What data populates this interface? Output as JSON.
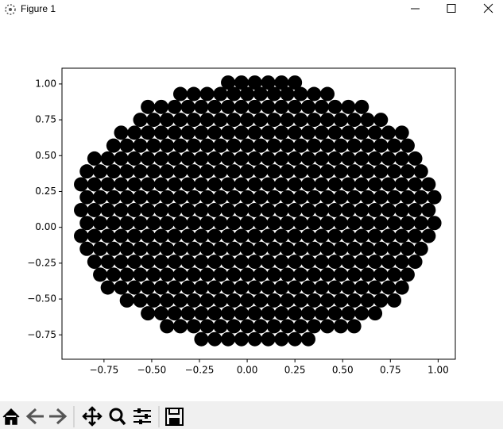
{
  "window": {
    "title": "Figure 1"
  },
  "chart_data": {
    "type": "scatter",
    "color": "#000000",
    "xlim": [
      -0.97,
      1.09
    ],
    "ylim": [
      -0.92,
      1.11
    ],
    "xticks": [
      {
        "value": -0.75,
        "label": "−0.75"
      },
      {
        "value": -0.5,
        "label": "−0.50"
      },
      {
        "value": -0.25,
        "label": "−0.25"
      },
      {
        "value": 0,
        "label": "0.00"
      },
      {
        "value": 0.25,
        "label": "0.25"
      },
      {
        "value": 0.5,
        "label": "0.50"
      },
      {
        "value": 0.75,
        "label": "0.75"
      },
      {
        "value": 1,
        "label": "1.00"
      }
    ],
    "yticks": [
      {
        "value": -0.75,
        "label": "−0.75"
      },
      {
        "value": -0.5,
        "label": "−0.50"
      },
      {
        "value": -0.25,
        "label": "−0.25"
      },
      {
        "value": 0,
        "label": "0.00"
      },
      {
        "value": 0.25,
        "label": "0.25"
      },
      {
        "value": 0.5,
        "label": "0.50"
      },
      {
        "value": 0.75,
        "label": "0.75"
      },
      {
        "value": 1,
        "label": "1.00"
      }
    ],
    "x": [
      -0.24,
      -0.17,
      -0.1,
      -0.03,
      0.04,
      0.11,
      0.18,
      0.25,
      0.32,
      -0.42,
      -0.35,
      -0.28,
      -0.21,
      -0.14,
      -0.07,
      0,
      0.07,
      0.14,
      0.21,
      0.28,
      0.35,
      0.42,
      0.49,
      0.56,
      -0.52,
      -0.45,
      -0.38,
      -0.31,
      -0.24,
      -0.17,
      -0.1,
      -0.03,
      0.04,
      0.11,
      0.18,
      0.25,
      0.32,
      0.39,
      0.46,
      0.53,
      0.6,
      0.67,
      -0.63,
      -0.56,
      -0.49,
      -0.42,
      -0.35,
      -0.28,
      -0.21,
      -0.14,
      -0.07,
      0,
      0.07,
      0.14,
      0.21,
      0.28,
      0.35,
      0.42,
      0.49,
      0.56,
      0.63,
      0.7,
      0.77,
      -0.73,
      -0.66,
      -0.59,
      -0.52,
      -0.45,
      -0.38,
      -0.31,
      -0.24,
      -0.17,
      -0.1,
      -0.03,
      0.04,
      0.11,
      0.18,
      0.25,
      0.32,
      0.39,
      0.46,
      0.53,
      0.6,
      0.67,
      0.74,
      0.81,
      -0.77,
      -0.7,
      -0.63,
      -0.56,
      -0.49,
      -0.42,
      -0.35,
      -0.28,
      -0.21,
      -0.14,
      -0.07,
      0,
      0.07,
      0.14,
      0.21,
      0.28,
      0.35,
      0.42,
      0.49,
      0.56,
      0.63,
      0.7,
      0.77,
      0.84,
      -0.8,
      -0.73,
      -0.66,
      -0.59,
      -0.52,
      -0.45,
      -0.38,
      -0.31,
      -0.24,
      -0.17,
      -0.1,
      -0.03,
      0.04,
      0.11,
      0.18,
      0.25,
      0.32,
      0.39,
      0.46,
      0.53,
      0.6,
      0.67,
      0.74,
      0.81,
      0.88,
      -0.84,
      -0.77,
      -0.7,
      -0.63,
      -0.56,
      -0.49,
      -0.42,
      -0.35,
      -0.28,
      -0.21,
      -0.14,
      -0.07,
      0,
      0.07,
      0.14,
      0.21,
      0.28,
      0.35,
      0.42,
      0.49,
      0.56,
      0.63,
      0.7,
      0.77,
      0.84,
      0.91,
      -0.87,
      -0.8,
      -0.73,
      -0.66,
      -0.59,
      -0.52,
      -0.45,
      -0.38,
      -0.31,
      -0.24,
      -0.17,
      -0.1,
      -0.03,
      0.04,
      0.11,
      0.18,
      0.25,
      0.32,
      0.39,
      0.46,
      0.53,
      0.6,
      0.67,
      0.74,
      0.81,
      0.88,
      0.95,
      -0.84,
      -0.77,
      -0.7,
      -0.63,
      -0.56,
      -0.49,
      -0.42,
      -0.35,
      -0.28,
      -0.21,
      -0.14,
      -0.07,
      0,
      0.07,
      0.14,
      0.21,
      0.28,
      0.35,
      0.42,
      0.49,
      0.56,
      0.63,
      0.7,
      0.77,
      0.84,
      0.91,
      0.98,
      -0.87,
      -0.8,
      -0.73,
      -0.66,
      -0.59,
      -0.52,
      -0.45,
      -0.38,
      -0.31,
      -0.24,
      -0.17,
      -0.1,
      -0.03,
      0.04,
      0.11,
      0.18,
      0.25,
      0.32,
      0.39,
      0.46,
      0.53,
      0.6,
      0.67,
      0.74,
      0.81,
      0.88,
      0.95,
      -0.84,
      -0.77,
      -0.7,
      -0.63,
      -0.56,
      -0.49,
      -0.42,
      -0.35,
      -0.28,
      -0.21,
      -0.14,
      -0.07,
      0,
      0.07,
      0.14,
      0.21,
      0.28,
      0.35,
      0.42,
      0.49,
      0.56,
      0.63,
      0.7,
      0.77,
      0.84,
      0.91,
      0.98,
      -0.87,
      -0.8,
      -0.73,
      -0.66,
      -0.59,
      -0.52,
      -0.45,
      -0.38,
      -0.31,
      -0.24,
      -0.17,
      -0.1,
      -0.03,
      0.04,
      0.11,
      0.18,
      0.25,
      0.32,
      0.39,
      0.46,
      0.53,
      0.6,
      0.67,
      0.74,
      0.81,
      0.88,
      0.95,
      -0.84,
      -0.77,
      -0.7,
      -0.63,
      -0.56,
      -0.49,
      -0.42,
      -0.35,
      -0.28,
      -0.21,
      -0.14,
      -0.07,
      0,
      0.07,
      0.14,
      0.21,
      0.28,
      0.35,
      0.42,
      0.49,
      0.56,
      0.63,
      0.7,
      0.77,
      0.84,
      0.91,
      -0.8,
      -0.73,
      -0.66,
      -0.59,
      -0.52,
      -0.45,
      -0.38,
      -0.31,
      -0.24,
      -0.17,
      -0.1,
      -0.03,
      0.04,
      0.11,
      0.18,
      0.25,
      0.32,
      0.39,
      0.46,
      0.53,
      0.6,
      0.67,
      0.74,
      0.81,
      0.88,
      -0.7,
      -0.63,
      -0.56,
      -0.49,
      -0.42,
      -0.35,
      -0.28,
      -0.21,
      -0.14,
      -0.07,
      0,
      0.07,
      0.14,
      0.21,
      0.28,
      0.35,
      0.42,
      0.49,
      0.56,
      0.63,
      0.7,
      0.77,
      0.84,
      -0.66,
      -0.59,
      -0.52,
      -0.45,
      -0.38,
      -0.31,
      -0.24,
      -0.17,
      -0.1,
      -0.03,
      0.04,
      0.11,
      0.18,
      0.25,
      0.32,
      0.39,
      0.46,
      0.53,
      0.6,
      0.67,
      0.74,
      0.81,
      -0.56,
      -0.49,
      -0.42,
      -0.35,
      -0.28,
      -0.21,
      -0.14,
      -0.07,
      0,
      0.07,
      0.14,
      0.21,
      0.28,
      0.35,
      0.42,
      0.49,
      0.56,
      0.63,
      0.7,
      -0.52,
      -0.45,
      -0.38,
      -0.31,
      -0.24,
      -0.17,
      -0.1,
      -0.03,
      0.04,
      0.11,
      0.18,
      0.25,
      0.32,
      0.39,
      0.46,
      0.53,
      0.6,
      -0.35,
      -0.28,
      -0.21,
      -0.14,
      -0.07,
      0,
      0.07,
      0.14,
      0.21,
      0.28,
      0.35,
      0.42,
      -0.1,
      -0.03,
      0.04,
      0.11,
      0.18,
      0.25
    ],
    "y": [
      -0.78,
      -0.78,
      -0.78,
      -0.78,
      -0.78,
      -0.78,
      -0.78,
      -0.78,
      -0.78,
      -0.69,
      -0.69,
      -0.69,
      -0.69,
      -0.69,
      -0.69,
      -0.69,
      -0.69,
      -0.69,
      -0.69,
      -0.69,
      -0.69,
      -0.69,
      -0.69,
      -0.69,
      -0.6,
      -0.6,
      -0.6,
      -0.6,
      -0.6,
      -0.6,
      -0.6,
      -0.6,
      -0.6,
      -0.6,
      -0.6,
      -0.6,
      -0.6,
      -0.6,
      -0.6,
      -0.6,
      -0.6,
      -0.6,
      -0.51,
      -0.51,
      -0.51,
      -0.51,
      -0.51,
      -0.51,
      -0.51,
      -0.51,
      -0.51,
      -0.51,
      -0.51,
      -0.51,
      -0.51,
      -0.51,
      -0.51,
      -0.51,
      -0.51,
      -0.51,
      -0.51,
      -0.51,
      -0.51,
      -0.42,
      -0.42,
      -0.42,
      -0.42,
      -0.42,
      -0.42,
      -0.42,
      -0.42,
      -0.42,
      -0.42,
      -0.42,
      -0.42,
      -0.42,
      -0.42,
      -0.42,
      -0.42,
      -0.42,
      -0.42,
      -0.42,
      -0.42,
      -0.42,
      -0.42,
      -0.42,
      -0.33,
      -0.33,
      -0.33,
      -0.33,
      -0.33,
      -0.33,
      -0.33,
      -0.33,
      -0.33,
      -0.33,
      -0.33,
      -0.33,
      -0.33,
      -0.33,
      -0.33,
      -0.33,
      -0.33,
      -0.33,
      -0.33,
      -0.33,
      -0.33,
      -0.33,
      -0.33,
      -0.33,
      -0.24,
      -0.24,
      -0.24,
      -0.24,
      -0.24,
      -0.24,
      -0.24,
      -0.24,
      -0.24,
      -0.24,
      -0.24,
      -0.24,
      -0.24,
      -0.24,
      -0.24,
      -0.24,
      -0.24,
      -0.24,
      -0.24,
      -0.24,
      -0.24,
      -0.24,
      -0.24,
      -0.24,
      -0.24,
      -0.15,
      -0.15,
      -0.15,
      -0.15,
      -0.15,
      -0.15,
      -0.15,
      -0.15,
      -0.15,
      -0.15,
      -0.15,
      -0.15,
      -0.15,
      -0.15,
      -0.15,
      -0.15,
      -0.15,
      -0.15,
      -0.15,
      -0.15,
      -0.15,
      -0.15,
      -0.15,
      -0.15,
      -0.15,
      -0.15,
      -0.06,
      -0.06,
      -0.06,
      -0.06,
      -0.06,
      -0.06,
      -0.06,
      -0.06,
      -0.06,
      -0.06,
      -0.06,
      -0.06,
      -0.06,
      -0.06,
      -0.06,
      -0.06,
      -0.06,
      -0.06,
      -0.06,
      -0.06,
      -0.06,
      -0.06,
      -0.06,
      -0.06,
      -0.06,
      -0.06,
      -0.06,
      0.03,
      0.03,
      0.03,
      0.03,
      0.03,
      0.03,
      0.03,
      0.03,
      0.03,
      0.03,
      0.03,
      0.03,
      0.03,
      0.03,
      0.03,
      0.03,
      0.03,
      0.03,
      0.03,
      0.03,
      0.03,
      0.03,
      0.03,
      0.03,
      0.03,
      0.03,
      0.03,
      0.12,
      0.12,
      0.12,
      0.12,
      0.12,
      0.12,
      0.12,
      0.12,
      0.12,
      0.12,
      0.12,
      0.12,
      0.12,
      0.12,
      0.12,
      0.12,
      0.12,
      0.12,
      0.12,
      0.12,
      0.12,
      0.12,
      0.12,
      0.12,
      0.12,
      0.12,
      0.12,
      0.21,
      0.21,
      0.21,
      0.21,
      0.21,
      0.21,
      0.21,
      0.21,
      0.21,
      0.21,
      0.21,
      0.21,
      0.21,
      0.21,
      0.21,
      0.21,
      0.21,
      0.21,
      0.21,
      0.21,
      0.21,
      0.21,
      0.21,
      0.21,
      0.21,
      0.21,
      0.21,
      0.3,
      0.3,
      0.3,
      0.3,
      0.3,
      0.3,
      0.3,
      0.3,
      0.3,
      0.3,
      0.3,
      0.3,
      0.3,
      0.3,
      0.3,
      0.3,
      0.3,
      0.3,
      0.3,
      0.3,
      0.3,
      0.3,
      0.3,
      0.3,
      0.3,
      0.3,
      0.3,
      0.39,
      0.39,
      0.39,
      0.39,
      0.39,
      0.39,
      0.39,
      0.39,
      0.39,
      0.39,
      0.39,
      0.39,
      0.39,
      0.39,
      0.39,
      0.39,
      0.39,
      0.39,
      0.39,
      0.39,
      0.39,
      0.39,
      0.39,
      0.39,
      0.39,
      0.39,
      0.48,
      0.48,
      0.48,
      0.48,
      0.48,
      0.48,
      0.48,
      0.48,
      0.48,
      0.48,
      0.48,
      0.48,
      0.48,
      0.48,
      0.48,
      0.48,
      0.48,
      0.48,
      0.48,
      0.48,
      0.48,
      0.48,
      0.48,
      0.48,
      0.48,
      0.57,
      0.57,
      0.57,
      0.57,
      0.57,
      0.57,
      0.57,
      0.57,
      0.57,
      0.57,
      0.57,
      0.57,
      0.57,
      0.57,
      0.57,
      0.57,
      0.57,
      0.57,
      0.57,
      0.57,
      0.57,
      0.57,
      0.57,
      0.66,
      0.66,
      0.66,
      0.66,
      0.66,
      0.66,
      0.66,
      0.66,
      0.66,
      0.66,
      0.66,
      0.66,
      0.66,
      0.66,
      0.66,
      0.66,
      0.66,
      0.66,
      0.66,
      0.66,
      0.66,
      0.66,
      0.75,
      0.75,
      0.75,
      0.75,
      0.75,
      0.75,
      0.75,
      0.75,
      0.75,
      0.75,
      0.75,
      0.75,
      0.75,
      0.75,
      0.75,
      0.75,
      0.75,
      0.75,
      0.75,
      0.84,
      0.84,
      0.84,
      0.84,
      0.84,
      0.84,
      0.84,
      0.84,
      0.84,
      0.84,
      0.84,
      0.84,
      0.84,
      0.84,
      0.84,
      0.84,
      0.84,
      0.93,
      0.93,
      0.93,
      0.93,
      0.93,
      0.93,
      0.93,
      0.93,
      0.93,
      0.93,
      0.93,
      0.93,
      1.01,
      1.01,
      1.01,
      1.01,
      1.01,
      1.01
    ]
  }
}
